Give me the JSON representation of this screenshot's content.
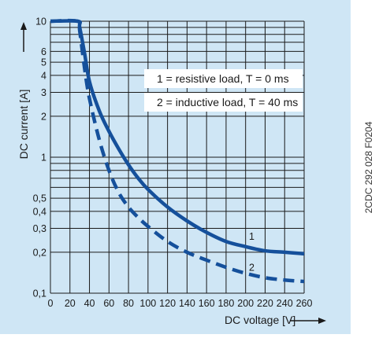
{
  "colors": {
    "panel_background": "#cfe6f5",
    "grid": "#1a1a1a",
    "curve": "#15509b",
    "legend_box": "#ffffff"
  },
  "side_code": "2CDC 292 028 F0204",
  "chart_data": {
    "type": "line",
    "xlabel": "DC voltage [V]",
    "ylabel": "DC current [A]",
    "xlim": [
      0,
      260
    ],
    "ylim": [
      0.1,
      10
    ],
    "y_scale": "log",
    "grid": true,
    "x_ticks": [
      "0",
      "20",
      "40",
      "60",
      "80",
      "100",
      "120",
      "140",
      "160",
      "180",
      "200",
      "220",
      "240",
      "260"
    ],
    "y_ticks": [
      {
        "label": "0,1",
        "value": 0.1
      },
      {
        "label": "0,2",
        "value": 0.2
      },
      {
        "label": "0,3",
        "value": 0.3
      },
      {
        "label": "0,4",
        "value": 0.4
      },
      {
        "label": "0,5",
        "value": 0.5
      },
      {
        "label": "1",
        "value": 1
      },
      {
        "label": "2",
        "value": 2
      },
      {
        "label": "3",
        "value": 3
      },
      {
        "label": "4",
        "value": 4
      },
      {
        "label": "5",
        "value": 5
      },
      {
        "label": "6",
        "value": 6
      },
      {
        "label": "10",
        "value": 10
      }
    ],
    "minor_y_values": [
      0.6,
      0.7,
      0.8,
      0.9,
      7,
      8,
      9
    ],
    "legend": [
      "1 = resistive load, T = 0 ms",
      "2 = inductive load, T = 40 ms"
    ],
    "series": [
      {
        "label": "1",
        "style": "solid",
        "x": [
          0,
          28,
          30,
          35,
          40,
          50,
          60,
          70,
          80,
          90,
          100,
          120,
          140,
          160,
          180,
          200,
          220,
          240,
          260
        ],
        "y": [
          10,
          10,
          9,
          5.8,
          3.6,
          2.2,
          1.55,
          1.15,
          0.88,
          0.7,
          0.58,
          0.43,
          0.34,
          0.28,
          0.24,
          0.22,
          0.205,
          0.2,
          0.195
        ]
      },
      {
        "label": "2",
        "style": "dashed",
        "x": [
          0,
          28,
          30,
          35,
          40,
          50,
          60,
          70,
          80,
          90,
          100,
          120,
          140,
          160,
          180,
          200,
          220,
          240,
          260
        ],
        "y": [
          10,
          10,
          8.5,
          4.5,
          2.7,
          1.35,
          0.8,
          0.55,
          0.43,
          0.36,
          0.31,
          0.24,
          0.2,
          0.175,
          0.155,
          0.14,
          0.13,
          0.125,
          0.122
        ]
      }
    ]
  }
}
